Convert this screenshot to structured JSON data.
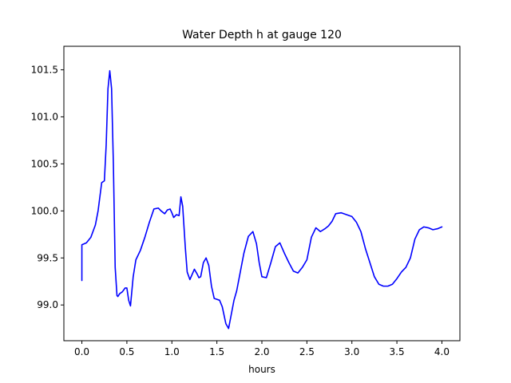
{
  "chart_data": {
    "type": "line",
    "title": "Water Depth h at gauge 120",
    "xlabel": "hours",
    "ylabel": "",
    "xlim": [
      -0.2,
      4.2
    ],
    "ylim": [
      98.62,
      101.75
    ],
    "grid": false,
    "legend": "none",
    "x_ticks": [
      0.0,
      0.5,
      1.0,
      1.5,
      2.0,
      2.5,
      3.0,
      3.5,
      4.0
    ],
    "x_tick_labels": [
      "0.0",
      "0.5",
      "1.0",
      "1.5",
      "2.0",
      "2.5",
      "3.0",
      "3.5",
      "4.0"
    ],
    "y_ticks": [
      99.0,
      99.5,
      100.0,
      100.5,
      101.0,
      101.5
    ],
    "y_tick_labels": [
      "99.0",
      "99.5",
      "100.0",
      "100.5",
      "101.0",
      "101.5"
    ],
    "series": [
      {
        "color": "#0000ff",
        "x": [
          0.0,
          0.0,
          0.05,
          0.1,
          0.15,
          0.18,
          0.22,
          0.25,
          0.27,
          0.29,
          0.31,
          0.33,
          0.35,
          0.37,
          0.39,
          0.4,
          0.42,
          0.45,
          0.48,
          0.5,
          0.52,
          0.54,
          0.57,
          0.6,
          0.62,
          0.65,
          0.7,
          0.75,
          0.8,
          0.85,
          0.88,
          0.92,
          0.95,
          0.98,
          1.0,
          1.02,
          1.05,
          1.08,
          1.1,
          1.12,
          1.15,
          1.17,
          1.2,
          1.25,
          1.28,
          1.3,
          1.32,
          1.35,
          1.38,
          1.41,
          1.44,
          1.47,
          1.5,
          1.53,
          1.56,
          1.6,
          1.63,
          1.66,
          1.69,
          1.72,
          1.76,
          1.8,
          1.85,
          1.9,
          1.94,
          1.97,
          2.0,
          2.05,
          2.1,
          2.15,
          2.2,
          2.25,
          2.3,
          2.35,
          2.4,
          2.45,
          2.5,
          2.55,
          2.6,
          2.65,
          2.7,
          2.74,
          2.78,
          2.82,
          2.88,
          2.94,
          3.0,
          3.05,
          3.1,
          3.15,
          3.2,
          3.25,
          3.3,
          3.35,
          3.4,
          3.45,
          3.5,
          3.55,
          3.6,
          3.65,
          3.7,
          3.75,
          3.8,
          3.85,
          3.9,
          3.95,
          4.0
        ],
        "values": [
          99.26,
          99.64,
          99.66,
          99.72,
          99.85,
          100.0,
          100.3,
          100.32,
          100.7,
          101.3,
          101.49,
          101.3,
          100.5,
          99.4,
          99.1,
          99.09,
          99.12,
          99.14,
          99.18,
          99.18,
          99.05,
          98.99,
          99.3,
          99.48,
          99.52,
          99.58,
          99.72,
          99.88,
          100.02,
          100.03,
          100.0,
          99.97,
          100.01,
          100.02,
          99.98,
          99.93,
          99.96,
          99.95,
          100.15,
          100.05,
          99.6,
          99.35,
          99.27,
          99.38,
          99.33,
          99.29,
          99.3,
          99.45,
          99.5,
          99.42,
          99.2,
          99.07,
          99.06,
          99.05,
          98.98,
          98.8,
          98.75,
          98.9,
          99.05,
          99.15,
          99.35,
          99.55,
          99.73,
          99.78,
          99.65,
          99.45,
          99.3,
          99.29,
          99.45,
          99.62,
          99.66,
          99.55,
          99.45,
          99.36,
          99.34,
          99.4,
          99.48,
          99.72,
          99.82,
          99.78,
          99.81,
          99.84,
          99.89,
          99.97,
          99.98,
          99.96,
          99.94,
          99.88,
          99.78,
          99.6,
          99.45,
          99.3,
          99.22,
          99.2,
          99.2,
          99.22,
          99.28,
          99.35,
          99.4,
          99.5,
          99.7,
          99.8,
          99.83,
          99.82,
          99.8,
          99.81,
          99.83
        ]
      }
    ]
  }
}
